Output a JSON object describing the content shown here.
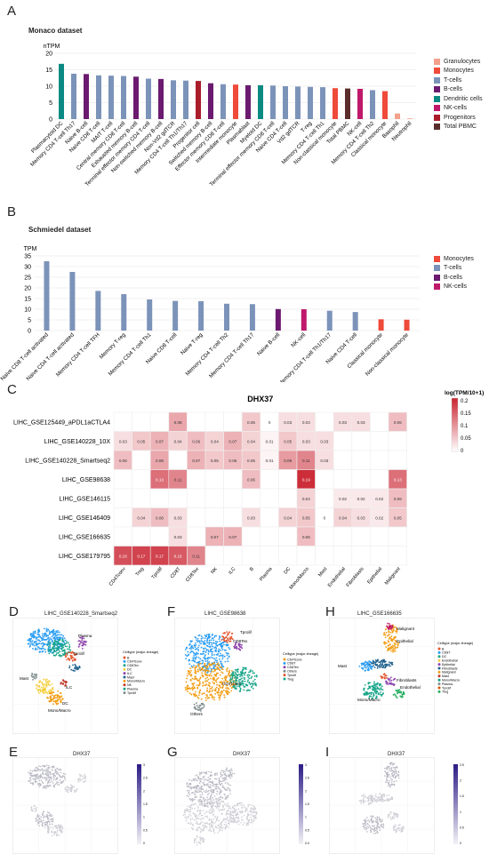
{
  "panels": {
    "A": "A",
    "B": "B",
    "C": "C",
    "D": "D",
    "E": "E",
    "F": "F",
    "G": "G",
    "H": "H",
    "I": "I"
  },
  "colors": {
    "Granulocytes": "#f3a08c",
    "Monocytes": "#ef4a3a",
    "T-cells": "#7c93b9",
    "B-cells": "#6b1a6f",
    "Dendritic cells": "#0b8a82",
    "NK-cells": "#c0186a",
    "Progenitors": "#aa1c2a",
    "Total PBMC": "#5a2d2a",
    "heat_high": "#c9222f",
    "heat_low": "#ffffff"
  },
  "chart_data": [
    {
      "type": "bar",
      "title": "Monaco dataset",
      "ylabel": "nTPM",
      "ylim": [
        0,
        20
      ],
      "yticks": [
        0,
        5,
        10,
        15,
        20
      ],
      "categories": [
        "Plasmacytoid DC",
        "Memory CD4 T-cell Th17",
        "Naive B-cell",
        "Naive CD8 T-cell",
        "MAIT T-cell",
        "Central memory CD8 T-cell",
        "Exhausted memory B-cell",
        "Terminal effector memory CD4 T-cell",
        "Non-switched memory B-cell",
        "Non-Vd2 gdTCR",
        "Memory CD4 T-cell Th1/Th17",
        "Progenitor cell",
        "Switched memory B-cell",
        "Effector memory CD8 T-cell",
        "Intermediate monocyte",
        "Plasmablast",
        "Myeloid DC",
        "Terminal effector memory CD8 T-cell",
        "Naive CD4 T-cell",
        "Vd2 gdTCR",
        "T-reg",
        "Memory CD4 T-cell Th1",
        "Non-classical monocyte",
        "Total PBMC",
        "NK-cell",
        "Memory CD4 T-cell Th2",
        "Classical monocyte",
        "Basophil",
        "Neutrophil"
      ],
      "values": [
        16.8,
        13.8,
        13.7,
        13.3,
        13.2,
        13.1,
        12.9,
        12.3,
        12.2,
        11.8,
        11.7,
        11.6,
        10.9,
        10.6,
        10.5,
        10.3,
        10.3,
        10.2,
        10.0,
        9.9,
        9.8,
        9.7,
        9.4,
        9.3,
        9.2,
        8.8,
        8.5,
        1.7,
        0.2
      ],
      "groups": [
        "Dendritic cells",
        "T-cells",
        "B-cells",
        "T-cells",
        "T-cells",
        "T-cells",
        "B-cells",
        "T-cells",
        "B-cells",
        "T-cells",
        "T-cells",
        "Progenitors",
        "B-cells",
        "T-cells",
        "Monocytes",
        "B-cells",
        "Dendritic cells",
        "T-cells",
        "T-cells",
        "T-cells",
        "T-cells",
        "T-cells",
        "Monocytes",
        "Total PBMC",
        "NK-cells",
        "T-cells",
        "Monocytes",
        "Granulocytes",
        "Granulocytes"
      ],
      "legend": [
        "Granulocytes",
        "Monocytes",
        "T-cells",
        "B-cells",
        "Dendritic cells",
        "NK-cells",
        "Progenitors",
        "Total PBMC"
      ],
      "legend_position": "right"
    },
    {
      "type": "bar",
      "title": "Schmiedel dataset",
      "ylabel": "TPM",
      "ylim": [
        0,
        35
      ],
      "yticks": [
        0,
        5,
        10,
        15,
        20,
        25,
        30,
        35
      ],
      "categories": [
        "Naive CD8 T-cell activated",
        "Naive CD4 T-cell activated",
        "Memory CD4 T-cell TFH",
        "Memory T-reg",
        "Memory CD4 T-cell Th1",
        "Naive CD8 T-cell",
        "Naive T-reg",
        "Memory CD4 T-cell Th2",
        "Memory CD4 T-cell Th17",
        "Naive B-cell",
        "NK-cell",
        "Memory CD4 T-cell Th1/Th17",
        "Naive CD4 T-cell",
        "Classical monocyte",
        "Non-classical monocyte"
      ],
      "values": [
        32.5,
        27.5,
        18.6,
        17.1,
        14.6,
        13.9,
        13.8,
        12.6,
        12.4,
        10.1,
        10.0,
        9.3,
        8.7,
        5.3,
        5.1
      ],
      "groups": [
        "T-cells",
        "T-cells",
        "T-cells",
        "T-cells",
        "T-cells",
        "T-cells",
        "T-cells",
        "T-cells",
        "T-cells",
        "B-cells",
        "NK-cells",
        "T-cells",
        "T-cells",
        "Monocytes",
        "Monocytes"
      ],
      "legend": [
        "Monocytes",
        "T-cells",
        "B-cells",
        "NK-cells"
      ],
      "legend_position": "right"
    },
    {
      "type": "heatmap",
      "title": "DHX37",
      "legend_title": "log(TPM/10+1)",
      "scale_ticks": [
        "0.2",
        "0.15",
        "0.1",
        "0.05",
        "0"
      ],
      "rows": [
        "LIHC_GSE125449_aPDL1aCTLA4",
        "LIHC_GSE140228_10X",
        "LIHC_GSE140228_Smartseq2",
        "LIHC_GSE98638",
        "LIHC_GSE146115",
        "LIHC_GSE146409",
        "LIHC_GSE166635",
        "LIHC_GSE179795"
      ],
      "columns": [
        "CD4Tconv",
        "Treg",
        "Tprolif",
        "CD8T",
        "CD8Tex",
        "NK",
        "ILC",
        "B",
        "Plasma",
        "DC",
        "Mono/Macro",
        "Mast",
        "Endothelial",
        "Fibroblasts",
        "Epithelial",
        "Malignant"
      ],
      "values": [
        [
          null,
          null,
          null,
          "0.08",
          null,
          null,
          null,
          "0.05",
          "0",
          "0.03",
          "0.03",
          null,
          "0.03",
          "0.03",
          null,
          "0.06"
        ],
        [
          "0.03",
          "0.05",
          "0.07",
          "0.04",
          "0.06",
          "0.04",
          "0.07",
          "0.04",
          "0.01",
          "0.05",
          "0.03",
          "0.03",
          null,
          null,
          null,
          null
        ],
        [
          "0.06",
          null,
          "0.08",
          null,
          "0.07",
          "0.05",
          "0.06",
          "0.05",
          "0.01",
          "0.09",
          "0.11",
          "0.03",
          null,
          null,
          null,
          null
        ],
        [
          null,
          null,
          "0.13",
          "0.11",
          null,
          null,
          null,
          "0.06",
          null,
          null,
          "0.19",
          null,
          null,
          null,
          null,
          "0.13"
        ],
        [
          null,
          null,
          null,
          null,
          null,
          null,
          null,
          null,
          null,
          null,
          "0.04",
          null,
          "0.02",
          "0.02",
          "0.02",
          "0.06"
        ],
        [
          null,
          "0.04",
          "0.06",
          "0.03",
          null,
          null,
          null,
          "0.03",
          null,
          "0.04",
          "0.05",
          "0",
          "0.04",
          "0.03",
          "0.02",
          "0.05"
        ],
        [
          null,
          null,
          null,
          "0.03",
          null,
          "0.07",
          "0.07",
          null,
          null,
          null,
          "0.06",
          null,
          null,
          null,
          null,
          null
        ],
        [
          "0.16",
          "0.17",
          "0.17",
          "0.15",
          "0.11",
          null,
          null,
          null,
          null,
          null,
          null,
          null,
          null,
          null,
          null,
          null
        ]
      ]
    }
  ],
  "umaps": {
    "D": {
      "title": "LIHC_GSE140228_Smartseq2",
      "legend_title": "Celltype (major-lineage)",
      "legend": [
        "B",
        "CD4Tconv",
        "CD8Tex",
        "DC",
        "ILC",
        "Mast",
        "Mono/Macro",
        "NK",
        "Plasma",
        "Tprolif"
      ],
      "labels": [
        "Plasma",
        "Tprolif",
        "Mast",
        "DC",
        "ILC",
        "Mono/Macro"
      ]
    },
    "F": {
      "title": "LIHC_GSE98638",
      "legend_title": "Celltype (major-lineage)",
      "legend": [
        "CD4Tconv",
        "CD8T",
        "CD8Tex",
        "Others",
        "Tprolif",
        "Treg"
      ],
      "labels": [
        "Tprolif",
        "CD8Tex",
        "CD4Tconv",
        "Others"
      ]
    },
    "H": {
      "title": "LIHC_GSE166635",
      "legend_title": "Celltype (major-lineage)",
      "legend": [
        "B",
        "CD8T",
        "DC",
        "Endothelial",
        "Epithelial",
        "Fibroblasts",
        "Malignant",
        "Mast",
        "Mono/Macro",
        "Plasma",
        "Tprolif",
        "Treg"
      ],
      "labels": [
        "Malignant",
        "Epithelial",
        "Mast",
        "Fibroblasts",
        "Endothelial",
        "Mono/Macro"
      ]
    },
    "E": {
      "title": "DHX37",
      "scale": [
        "3",
        "2.5",
        "2",
        "1.5",
        "1",
        "0.5",
        "0"
      ]
    },
    "G": {
      "title": "DHX37",
      "scale": [
        "3",
        "2.5",
        "2",
        "1.5",
        "1",
        "0.5",
        "0.0"
      ]
    },
    "I": {
      "title": "DHX37",
      "scale": [
        "2.5",
        "2",
        "1.5",
        "1",
        "0.5",
        "0"
      ]
    }
  }
}
